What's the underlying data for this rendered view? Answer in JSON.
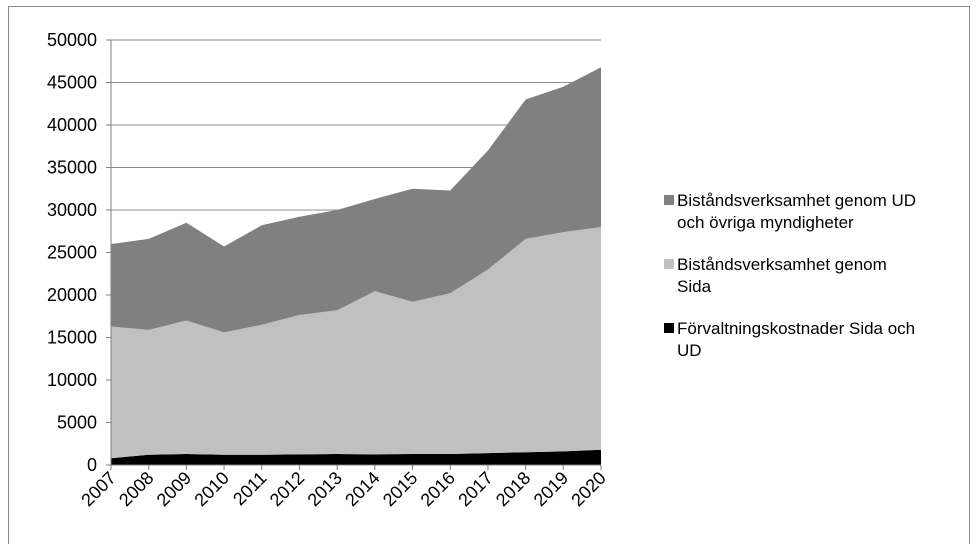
{
  "chart_data": {
    "type": "area",
    "stacked": true,
    "x": [
      "2007",
      "2008",
      "2009",
      "2010",
      "2011",
      "2012",
      "2013",
      "2014",
      "2015",
      "2016",
      "2017",
      "2018",
      "2019",
      "2020"
    ],
    "ylim": [
      0,
      50000
    ],
    "yticks": [
      0,
      5000,
      10000,
      15000,
      20000,
      25000,
      30000,
      35000,
      40000,
      45000,
      50000
    ],
    "grid": true,
    "legend_position": "right",
    "series": [
      {
        "name": "Förvaltningskostnader Sida och UD",
        "color": "#000000",
        "values": [
          800,
          1200,
          1300,
          1200,
          1200,
          1250,
          1300,
          1250,
          1300,
          1300,
          1400,
          1500,
          1600,
          1800
        ]
      },
      {
        "name": "Biståndsverksamhet genom Sida",
        "color": "#c0c0c0",
        "values": [
          15500,
          14700,
          15700,
          14400,
          15300,
          16400,
          16900,
          19200,
          17900,
          18900,
          21600,
          25100,
          25800,
          26200
        ]
      },
      {
        "name": "Biståndsverksamhet genom UD och övriga myndigheter",
        "color": "#808080",
        "values": [
          9700,
          10700,
          11500,
          10100,
          11700,
          11550,
          11800,
          10850,
          13300,
          12100,
          14000,
          16400,
          17100,
          18800
        ]
      }
    ],
    "legend": [
      {
        "lines": [
          "Biståndsverksamhet genom UD",
          "och övriga myndigheter"
        ],
        "color": "#808080"
      },
      {
        "lines": [
          "Biståndsverksamhet genom",
          "Sida"
        ],
        "color": "#c0c0c0"
      },
      {
        "lines": [
          "Förvaltningskostnader Sida och",
          "UD"
        ],
        "color": "#000000"
      }
    ]
  }
}
